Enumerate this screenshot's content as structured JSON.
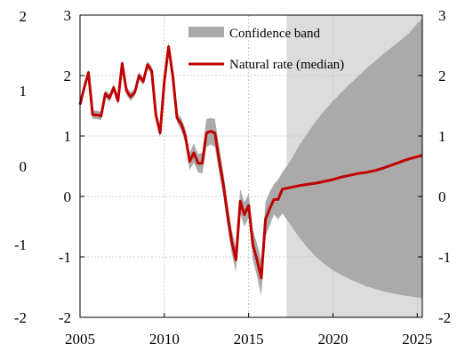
{
  "chart_data": {
    "type": "line",
    "title": "",
    "xlabel": "",
    "ylabel": "",
    "xlim": [
      2005,
      2025.3
    ],
    "ylim": [
      -2,
      3
    ],
    "grid": true,
    "legend_placement": "top-right",
    "x_ticks": [
      "2005",
      "2010",
      "2015",
      "2020",
      "2025"
    ],
    "x_tick_values": [
      2005,
      2010,
      2015,
      2020,
      2025
    ],
    "y_ticks_left_inner": [
      "3",
      "2",
      "1",
      "0",
      "-1",
      "-2"
    ],
    "y_ticks_left_inner_values": [
      3,
      2,
      1,
      0,
      -1,
      -2
    ],
    "y_ticks_left_outer": [
      "2",
      "1",
      "0",
      "-1",
      "-2"
    ],
    "y_ticks_right": [
      "3",
      "2",
      "1",
      "0",
      "-1",
      "-2"
    ],
    "y_ticks_right_values": [
      3,
      2,
      1,
      0,
      -1,
      -2
    ],
    "forecast_shade": {
      "x_start": 2017.25,
      "x_end": 2025.3,
      "color": "#dcdcdc"
    },
    "colors": {
      "band": "#aaaaaa",
      "line": "#c00000",
      "forecast": "#dcdcdc",
      "grid": "#bdbdbd"
    },
    "series": [
      {
        "name": "Natural rate (median)",
        "points": [
          [
            2005.0,
            1.52
          ],
          [
            2005.25,
            1.8
          ],
          [
            2005.5,
            2.05
          ],
          [
            2005.75,
            1.35
          ],
          [
            2006.0,
            1.35
          ],
          [
            2006.25,
            1.33
          ],
          [
            2006.5,
            1.7
          ],
          [
            2006.75,
            1.63
          ],
          [
            2007.0,
            1.8
          ],
          [
            2007.25,
            1.58
          ],
          [
            2007.5,
            2.2
          ],
          [
            2007.75,
            1.75
          ],
          [
            2008.0,
            1.65
          ],
          [
            2008.25,
            1.72
          ],
          [
            2008.5,
            2.0
          ],
          [
            2008.75,
            1.9
          ],
          [
            2009.0,
            2.18
          ],
          [
            2009.25,
            2.08
          ],
          [
            2009.5,
            1.35
          ],
          [
            2009.75,
            1.05
          ],
          [
            2010.0,
            1.9
          ],
          [
            2010.25,
            2.48
          ],
          [
            2010.5,
            2.0
          ],
          [
            2010.75,
            1.3
          ],
          [
            2011.0,
            1.2
          ],
          [
            2011.25,
            1.0
          ],
          [
            2011.5,
            0.58
          ],
          [
            2011.75,
            0.72
          ],
          [
            2012.0,
            0.55
          ],
          [
            2012.25,
            0.55
          ],
          [
            2012.5,
            1.05
          ],
          [
            2012.75,
            1.08
          ],
          [
            2013.0,
            1.05
          ],
          [
            2013.25,
            0.6
          ],
          [
            2013.5,
            0.2
          ],
          [
            2013.75,
            -0.3
          ],
          [
            2014.0,
            -0.75
          ],
          [
            2014.25,
            -1.05
          ],
          [
            2014.5,
            -0.08
          ],
          [
            2014.75,
            -0.3
          ],
          [
            2015.0,
            -0.15
          ],
          [
            2015.25,
            -0.8
          ],
          [
            2015.5,
            -1.05
          ],
          [
            2015.75,
            -1.35
          ],
          [
            2016.0,
            -0.38
          ],
          [
            2016.25,
            -0.2
          ],
          [
            2016.5,
            -0.05
          ],
          [
            2016.75,
            -0.05
          ],
          [
            2017.0,
            0.12
          ],
          [
            2017.5,
            0.15
          ],
          [
            2018.0,
            0.18
          ],
          [
            2018.5,
            0.2
          ],
          [
            2019.0,
            0.22
          ],
          [
            2019.5,
            0.25
          ],
          [
            2020.0,
            0.28
          ],
          [
            2020.5,
            0.32
          ],
          [
            2021.0,
            0.35
          ],
          [
            2021.5,
            0.38
          ],
          [
            2022.0,
            0.4
          ],
          [
            2022.5,
            0.43
          ],
          [
            2023.0,
            0.47
          ],
          [
            2023.5,
            0.52
          ],
          [
            2024.0,
            0.57
          ],
          [
            2024.5,
            0.62
          ],
          [
            2025.3,
            0.68
          ]
        ]
      },
      {
        "name": "Confidence band",
        "upper": [
          [
            2005.0,
            1.57
          ],
          [
            2005.25,
            1.85
          ],
          [
            2005.5,
            2.1
          ],
          [
            2005.75,
            1.42
          ],
          [
            2006.0,
            1.42
          ],
          [
            2006.25,
            1.4
          ],
          [
            2006.5,
            1.76
          ],
          [
            2006.75,
            1.7
          ],
          [
            2007.0,
            1.86
          ],
          [
            2007.25,
            1.65
          ],
          [
            2007.5,
            2.25
          ],
          [
            2007.75,
            1.82
          ],
          [
            2008.0,
            1.72
          ],
          [
            2008.25,
            1.78
          ],
          [
            2008.5,
            2.06
          ],
          [
            2008.75,
            1.96
          ],
          [
            2009.0,
            2.24
          ],
          [
            2009.25,
            2.15
          ],
          [
            2009.5,
            1.43
          ],
          [
            2009.75,
            1.13
          ],
          [
            2010.0,
            1.98
          ],
          [
            2010.25,
            2.55
          ],
          [
            2010.5,
            2.07
          ],
          [
            2010.75,
            1.38
          ],
          [
            2011.0,
            1.3
          ],
          [
            2011.25,
            1.12
          ],
          [
            2011.5,
            0.72
          ],
          [
            2011.75,
            0.88
          ],
          [
            2012.0,
            0.7
          ],
          [
            2012.25,
            0.72
          ],
          [
            2012.5,
            1.28
          ],
          [
            2012.75,
            1.3
          ],
          [
            2013.0,
            1.28
          ],
          [
            2013.25,
            0.82
          ],
          [
            2013.5,
            0.4
          ],
          [
            2013.75,
            -0.1
          ],
          [
            2014.0,
            -0.55
          ],
          [
            2014.25,
            -0.85
          ],
          [
            2014.5,
            0.12
          ],
          [
            2014.75,
            -0.1
          ],
          [
            2015.0,
            0.05
          ],
          [
            2015.25,
            -0.55
          ],
          [
            2015.5,
            -0.78
          ],
          [
            2015.75,
            -1.05
          ],
          [
            2016.0,
            -0.1
          ],
          [
            2016.25,
            0.08
          ],
          [
            2016.5,
            0.2
          ],
          [
            2016.75,
            0.28
          ],
          [
            2017.0,
            0.4
          ],
          [
            2017.5,
            0.6
          ],
          [
            2018.0,
            0.85
          ],
          [
            2018.5,
            1.05
          ],
          [
            2019.0,
            1.25
          ],
          [
            2019.5,
            1.42
          ],
          [
            2020.0,
            1.58
          ],
          [
            2020.5,
            1.72
          ],
          [
            2021.0,
            1.86
          ],
          [
            2021.5,
            1.99
          ],
          [
            2022.0,
            2.12
          ],
          [
            2022.5,
            2.24
          ],
          [
            2023.0,
            2.36
          ],
          [
            2023.5,
            2.47
          ],
          [
            2024.0,
            2.58
          ],
          [
            2024.5,
            2.7
          ],
          [
            2025.3,
            2.95
          ]
        ],
        "lower": [
          [
            2005.0,
            1.47
          ],
          [
            2005.25,
            1.75
          ],
          [
            2005.5,
            2.0
          ],
          [
            2005.75,
            1.28
          ],
          [
            2006.0,
            1.28
          ],
          [
            2006.25,
            1.26
          ],
          [
            2006.5,
            1.64
          ],
          [
            2006.75,
            1.56
          ],
          [
            2007.0,
            1.74
          ],
          [
            2007.25,
            1.51
          ],
          [
            2007.5,
            2.15
          ],
          [
            2007.75,
            1.68
          ],
          [
            2008.0,
            1.58
          ],
          [
            2008.25,
            1.66
          ],
          [
            2008.5,
            1.94
          ],
          [
            2008.75,
            1.84
          ],
          [
            2009.0,
            2.12
          ],
          [
            2009.25,
            2.01
          ],
          [
            2009.5,
            1.27
          ],
          [
            2009.75,
            0.97
          ],
          [
            2010.0,
            1.82
          ],
          [
            2010.25,
            2.41
          ],
          [
            2010.5,
            1.93
          ],
          [
            2010.75,
            1.22
          ],
          [
            2011.0,
            1.1
          ],
          [
            2011.25,
            0.88
          ],
          [
            2011.5,
            0.44
          ],
          [
            2011.75,
            0.56
          ],
          [
            2012.0,
            0.4
          ],
          [
            2012.25,
            0.38
          ],
          [
            2012.5,
            0.82
          ],
          [
            2012.75,
            0.86
          ],
          [
            2013.0,
            0.82
          ],
          [
            2013.25,
            0.38
          ],
          [
            2013.5,
            0.0
          ],
          [
            2013.75,
            -0.5
          ],
          [
            2014.0,
            -0.95
          ],
          [
            2014.25,
            -1.25
          ],
          [
            2014.5,
            -0.28
          ],
          [
            2014.75,
            -0.5
          ],
          [
            2015.0,
            -0.35
          ],
          [
            2015.25,
            -1.05
          ],
          [
            2015.5,
            -1.32
          ],
          [
            2015.75,
            -1.65
          ],
          [
            2016.0,
            -0.66
          ],
          [
            2016.25,
            -0.48
          ],
          [
            2016.5,
            -0.3
          ],
          [
            2016.75,
            -0.38
          ],
          [
            2017.0,
            -0.28
          ],
          [
            2017.5,
            -0.48
          ],
          [
            2018.0,
            -0.68
          ],
          [
            2018.5,
            -0.85
          ],
          [
            2019.0,
            -1.0
          ],
          [
            2019.5,
            -1.12
          ],
          [
            2020.0,
            -1.22
          ],
          [
            2020.5,
            -1.3
          ],
          [
            2021.0,
            -1.37
          ],
          [
            2021.5,
            -1.43
          ],
          [
            2022.0,
            -1.49
          ],
          [
            2022.5,
            -1.53
          ],
          [
            2023.0,
            -1.57
          ],
          [
            2023.5,
            -1.6
          ],
          [
            2024.0,
            -1.63
          ],
          [
            2024.5,
            -1.65
          ],
          [
            2025.3,
            -1.68
          ]
        ]
      }
    ]
  }
}
